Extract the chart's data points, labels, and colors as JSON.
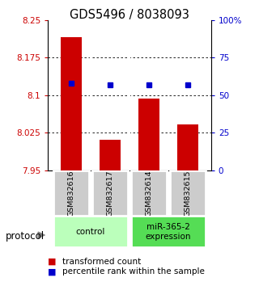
{
  "title": "GDS5496 / 8038093",
  "samples": [
    "GSM832616",
    "GSM832617",
    "GSM832614",
    "GSM832615"
  ],
  "bar_values": [
    8.215,
    8.01,
    8.093,
    8.042
  ],
  "percentile_values": [
    58,
    57,
    57,
    57
  ],
  "ylim_left": [
    7.95,
    8.25
  ],
  "ylim_right": [
    0,
    100
  ],
  "yticks_left": [
    7.95,
    8.025,
    8.1,
    8.175,
    8.25
  ],
  "yticks_right": [
    0,
    25,
    50,
    75,
    100
  ],
  "yticklabels_right": [
    "0",
    "25",
    "50",
    "75",
    "100%"
  ],
  "bar_color": "#cc0000",
  "dot_color": "#0000cc",
  "bar_bottom": 7.95,
  "grid_values": [
    8.025,
    8.1,
    8.175
  ],
  "group_control_color": "#bbffbb",
  "group_expr_color": "#55dd55",
  "protocol_label": "protocol",
  "legend_items": [
    {
      "color": "#cc0000",
      "label": "transformed count"
    },
    {
      "color": "#0000cc",
      "label": "percentile rank within the sample"
    }
  ],
  "background_color": "#ffffff",
  "sample_box_color": "#cccccc",
  "bar_width": 0.55
}
